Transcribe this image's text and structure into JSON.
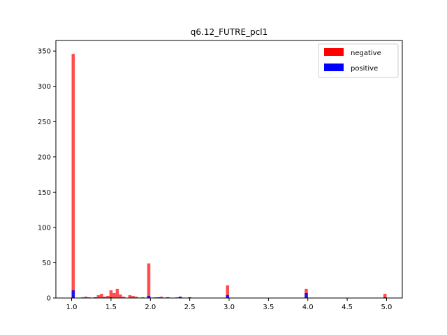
{
  "chart_data": {
    "type": "bar",
    "title": "q6.12_FUTRE_pcl1",
    "xlabel": "",
    "ylabel": "",
    "xlim": [
      0.8,
      5.2
    ],
    "ylim": [
      0,
      365
    ],
    "xticks": [
      "1.0",
      "1.5",
      "2.0",
      "2.5",
      "3.0",
      "3.5",
      "4.0",
      "4.5",
      "5.0"
    ],
    "yticks": [
      "0",
      "50",
      "100",
      "150",
      "200",
      "250",
      "300",
      "350"
    ],
    "bin_width": 0.04,
    "legend_position": "top-right",
    "series": [
      {
        "name": "negative",
        "color": "#ff0000",
        "bins": [
          [
            1.0,
            346
          ],
          [
            1.12,
            1
          ],
          [
            1.16,
            2
          ],
          [
            1.2,
            1
          ],
          [
            1.28,
            1
          ],
          [
            1.32,
            4
          ],
          [
            1.36,
            6
          ],
          [
            1.4,
            2
          ],
          [
            1.44,
            3
          ],
          [
            1.48,
            11
          ],
          [
            1.52,
            7
          ],
          [
            1.56,
            13
          ],
          [
            1.6,
            5
          ],
          [
            1.64,
            2
          ],
          [
            1.72,
            4
          ],
          [
            1.76,
            3
          ],
          [
            1.8,
            2
          ],
          [
            1.88,
            1
          ],
          [
            1.96,
            49
          ],
          [
            2.04,
            1
          ],
          [
            2.12,
            2
          ],
          [
            2.2,
            1
          ],
          [
            2.32,
            1
          ],
          [
            2.48,
            1
          ],
          [
            2.96,
            18
          ],
          [
            3.96,
            13
          ],
          [
            4.96,
            6
          ]
        ]
      },
      {
        "name": "positive",
        "color": "#0000ff",
        "bins": [
          [
            1.0,
            11
          ],
          [
            1.28,
            1
          ],
          [
            1.48,
            1
          ],
          [
            1.96,
            3
          ],
          [
            2.08,
            1
          ],
          [
            2.2,
            1
          ],
          [
            2.36,
            2
          ],
          [
            2.48,
            1
          ],
          [
            2.96,
            4
          ],
          [
            3.96,
            7
          ],
          [
            4.96,
            1
          ]
        ]
      }
    ]
  }
}
